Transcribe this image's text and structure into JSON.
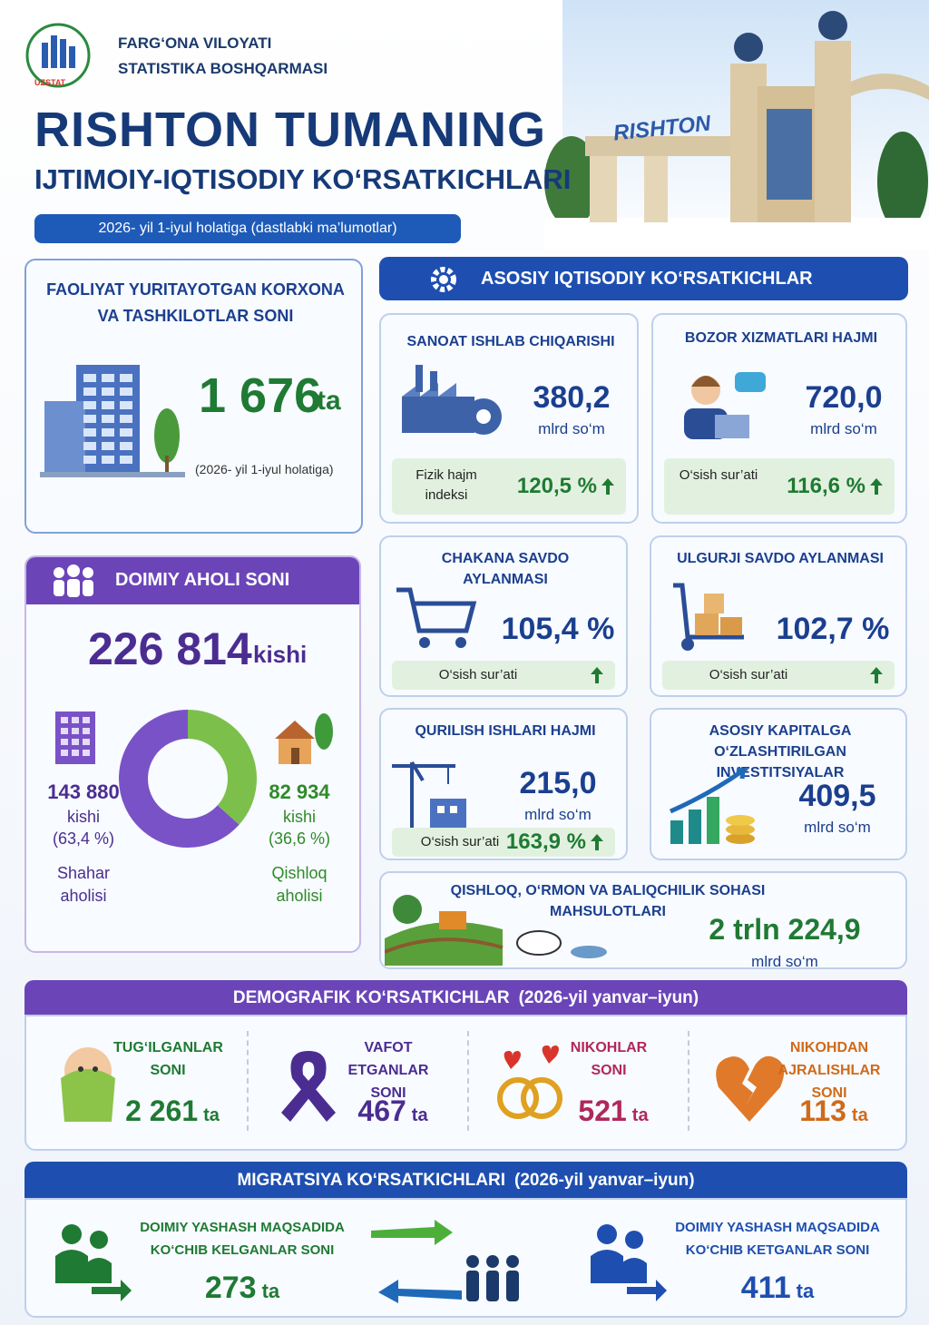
{
  "header": {
    "org": [
      "FARG‘ONA VILOYATI",
      "STATISTIKA BOSHQARMASI"
    ],
    "logo_text": "UZSTAT",
    "title": "RISHTON TUMANING",
    "subtitle": "IJTIMOIY-IQTISODIY KO‘RSATKICHLARI",
    "date": "2026- yil 1-iyul holatiga (dastlabki ma’lumotlar)",
    "sign": "RISHTON"
  },
  "enterprises": {
    "title": "FAOLIYAT YURITAYOTGAN KORXONA VA TASHKILOTLAR SONI",
    "value": "1 676",
    "unit": "ta",
    "note": "(2026- yil 1-iyul holatiga)"
  },
  "population": {
    "title": "DOIMIY AHOLI SONI",
    "value": "226 814",
    "unit": "kishi",
    "chart": {
      "type": "pie",
      "categories": [
        "Shahar aholisi",
        "Qishloq aholisi"
      ],
      "counts": [
        "143 880",
        "82 934"
      ],
      "count_unit": "kishi",
      "values": [
        63.4,
        36.6
      ],
      "value_labels": [
        "(63,4 %)",
        "(36,6 %)"
      ],
      "colors": [
        "#7a52c7",
        "#7cc04b"
      ]
    }
  },
  "economy": {
    "title": "ASOSIY IQTISODIY KO‘RSATKICHLAR",
    "cards": [
      {
        "title": "SANOAT ISHLAB CHIQARISHI",
        "value": "380,2",
        "unit": "mlrd so‘m",
        "rate_label": "Fizik hajm indeksi",
        "rate": "120,5 %"
      },
      {
        "title": "BOZOR XIZMATLARI HAJMI",
        "value": "720,0",
        "unit": "mlrd so‘m",
        "rate_label": "O‘sish sur’ati",
        "rate": "116,6 %"
      },
      {
        "title": "CHAKANA SAVDO AYLANMASI",
        "value": "105,4 %",
        "rate_label": "O‘sish sur’ati"
      },
      {
        "title": "ULGURJI SAVDO AYLANMASI",
        "value": "102,7 %",
        "rate_label": "O‘sish sur’ati"
      },
      {
        "title": "QURILISH ISHLARI HAJMI",
        "value": "215,0",
        "unit": "mlrd so‘m",
        "rate_label": "O‘sish sur’ati",
        "rate": "163,9 %"
      },
      {
        "title": "ASOSIY KAPITALGA O‘ZLASHTIRILGAN INVESTITSIYALAR",
        "value": "409,5",
        "unit": "mlrd so‘m"
      },
      {
        "title": "QISHLOQ, O‘RMON VA BALIQCHILIK SOHASI MAHSULOTLARI",
        "value": "2 trln 224,9",
        "unit": "mlrd so‘m"
      }
    ]
  },
  "demography": {
    "title": "DEMOGRAFIK KO‘RSATKICHLAR",
    "period": "(2026-yil yanvar–iyun)",
    "items": [
      {
        "label": "TUG‘ILGANLAR SONI",
        "value": "2 261",
        "unit": "ta"
      },
      {
        "label": "VAFOT ETGANLAR SONI",
        "value": "467",
        "unit": "ta"
      },
      {
        "label": "NIKOHLAR SONI",
        "value": "521",
        "unit": "ta"
      },
      {
        "label": "NIKOHDAN AJRALISHLAR SONI",
        "value": "113",
        "unit": "ta"
      }
    ]
  },
  "migration": {
    "title": "MIGRATSIYA KO‘RSATKICHLARI",
    "period": "(2026-yil yanvar–iyun)",
    "items": [
      {
        "label": "DOIMIY YASHASH MAQSADIDA KO‘CHIB KELGANLAR SONI",
        "value": "273",
        "unit": "ta"
      },
      {
        "label": "DOIMIY YASHASH MAQSADIDA KO‘CHIB KETGANLAR SONI",
        "value": "411",
        "unit": "ta"
      }
    ]
  }
}
